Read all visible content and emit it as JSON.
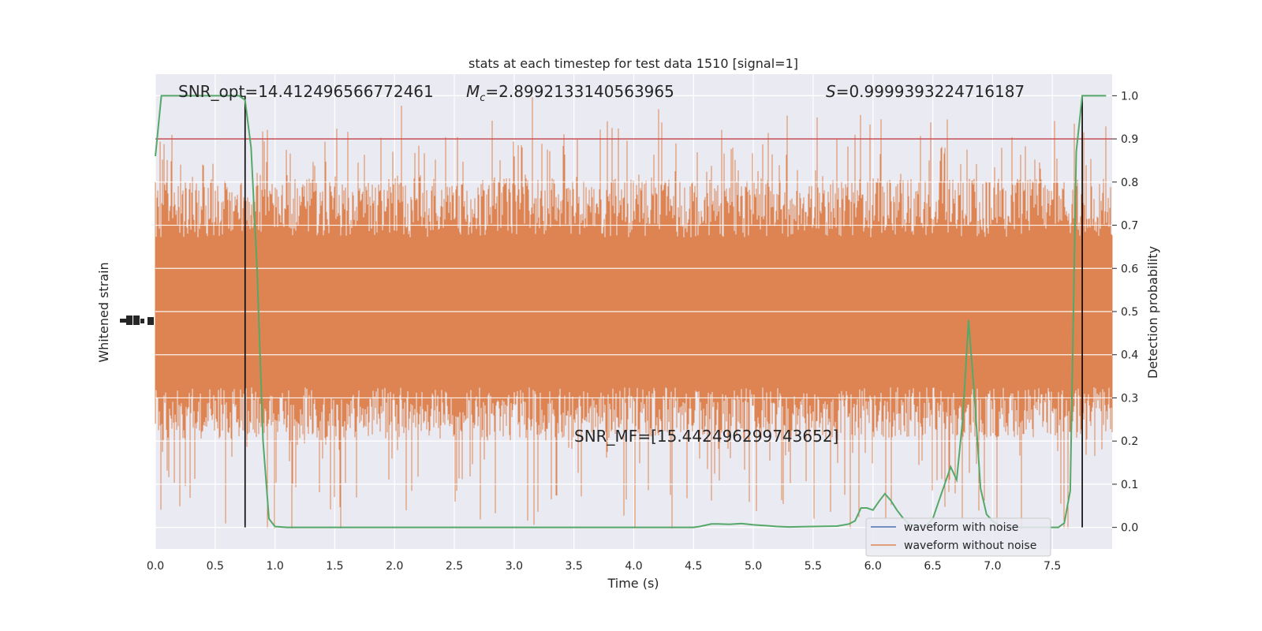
{
  "chart_data": {
    "type": "line",
    "title": "stats at each timestep for test data 1510 [signal=1]",
    "xlabel": "Time (s)",
    "ylabel_left": "Whitened strain",
    "ylabel_right": "Detection probability",
    "xlim": [
      0.0,
      8.0
    ],
    "ylim_right": [
      -0.05,
      1.05
    ],
    "x_ticks": [
      "0.0",
      "0.5",
      "1.0",
      "1.5",
      "2.0",
      "2.5",
      "3.0",
      "3.5",
      "4.0",
      "4.5",
      "5.0",
      "5.5",
      "6.0",
      "6.5",
      "7.0",
      "7.5"
    ],
    "y_ticks_right": [
      "0.0",
      "0.1",
      "0.2",
      "0.3",
      "0.4",
      "0.5",
      "0.6",
      "0.7",
      "0.8",
      "0.9",
      "1.0"
    ],
    "grid": true,
    "legend_position": "lower-right",
    "annotations": {
      "snr_opt": "SNR_opt=14.412496566772461",
      "mc_symbol": "M",
      "mc_subscript": "c",
      "mc_value": "=2.8992133140563965",
      "s_symbol": "S",
      "s_value": "=0.9999393224716187",
      "snr_mf": "SNR_MF=[15.442496299743652]"
    },
    "series": [
      {
        "name": "waveform with noise",
        "color": "#4c72b0"
      },
      {
        "name": "waveform without noise",
        "color": "#dd8452"
      }
    ],
    "detection_probability": {
      "color": "#55a868",
      "x": [
        0.0,
        0.05,
        0.1,
        0.2,
        0.3,
        0.4,
        0.5,
        0.6,
        0.65,
        0.7,
        0.75,
        0.8,
        0.85,
        0.9,
        0.95,
        1.0,
        1.1,
        1.25,
        1.5,
        2.0,
        3.0,
        4.0,
        4.5,
        4.55,
        4.6,
        4.65,
        4.7,
        4.8,
        4.9,
        5.0,
        5.1,
        5.2,
        5.3,
        5.5,
        5.7,
        5.8,
        5.85,
        5.9,
        5.95,
        6.0,
        6.05,
        6.1,
        6.15,
        6.2,
        6.25,
        6.3,
        6.35,
        6.4,
        6.45,
        6.5,
        6.55,
        6.6,
        6.65,
        6.7,
        6.75,
        6.8,
        6.85,
        6.9,
        6.95,
        7.0,
        7.05,
        7.1,
        7.15,
        7.2,
        7.3,
        7.5,
        7.55,
        7.6,
        7.65,
        7.7,
        7.75,
        7.8,
        7.85,
        7.9,
        7.95
      ],
      "y": [
        0.86,
        1.0,
        1.0,
        1.0,
        1.0,
        1.0,
        1.0,
        1.0,
        1.0,
        1.0,
        0.99,
        0.88,
        0.6,
        0.2,
        0.02,
        0.002,
        0.0,
        0.0,
        0.0,
        0.0,
        0.0,
        0.0,
        0.0,
        0.002,
        0.005,
        0.008,
        0.008,
        0.007,
        0.009,
        0.006,
        0.004,
        0.002,
        0.001,
        0.002,
        0.003,
        0.008,
        0.015,
        0.045,
        0.045,
        0.04,
        0.06,
        0.078,
        0.062,
        0.04,
        0.022,
        0.008,
        0.003,
        0.002,
        0.005,
        0.02,
        0.06,
        0.1,
        0.14,
        0.11,
        0.25,
        0.48,
        0.3,
        0.09,
        0.03,
        0.015,
        0.005,
        0.0,
        0.0,
        0.0,
        0.0,
        0.0,
        0.0,
        0.01,
        0.085,
        0.87,
        1.0,
        1.0,
        1.0,
        1.0,
        1.0
      ],
      "threshold": 0.9,
      "vertical_markers": [
        0.75,
        7.75
      ]
    }
  }
}
